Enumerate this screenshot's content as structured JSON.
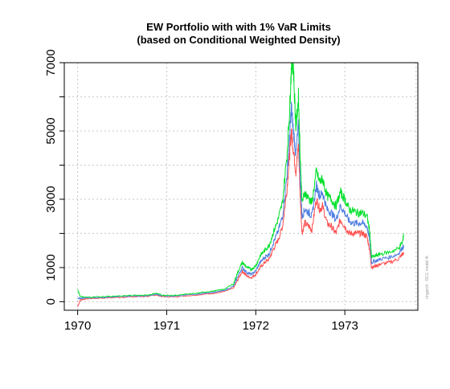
{
  "chart_data": {
    "type": "line",
    "title": "EW Portfolio with with 1% VaR Limits",
    "subtitle": "(based on Conditional Weighted Density)",
    "xlabel": "",
    "ylabel": "",
    "x_tick_labels": [
      "1970",
      "1971",
      "1972",
      "1973"
    ],
    "y_tick_labels": [
      "0",
      "1000",
      "3000",
      "5000",
      "7000"
    ],
    "y_gridlines": [
      0,
      1000,
      2000,
      3000,
      4000,
      5000,
      6000,
      7000
    ],
    "xlim": [
      1969.85,
      1973.82
    ],
    "ylim": [
      -250,
      7000
    ],
    "grid": true,
    "legend": "none",
    "watermark": "rmgarch : DCC model fit",
    "x": [
      1970.0,
      1970.03,
      1970.08,
      1970.2,
      1970.4,
      1970.6,
      1970.8,
      1970.88,
      1970.95,
      1971.05,
      1971.2,
      1971.35,
      1971.45,
      1971.55,
      1971.65,
      1971.75,
      1971.8,
      1971.85,
      1971.9,
      1971.95,
      1972.0,
      1972.05,
      1972.1,
      1972.15,
      1972.2,
      1972.25,
      1972.3,
      1972.35,
      1972.38,
      1972.4,
      1972.42,
      1972.45,
      1972.48,
      1972.5,
      1972.52,
      1972.55,
      1972.6,
      1972.63,
      1972.68,
      1972.72,
      1972.75,
      1972.8,
      1972.85,
      1972.9,
      1972.95,
      1973.0,
      1973.05,
      1973.1,
      1973.15,
      1973.2,
      1973.25,
      1973.28,
      1973.3,
      1973.35,
      1973.4,
      1973.5,
      1973.6,
      1973.65,
      1973.66
    ],
    "series": [
      {
        "color": "#ff4d4d",
        "values": [
          -150,
          50,
          80,
          100,
          120,
          140,
          160,
          200,
          150,
          140,
          170,
          200,
          230,
          250,
          300,
          400,
          650,
          900,
          750,
          700,
          800,
          1000,
          1150,
          1250,
          1550,
          1800,
          2200,
          3300,
          4300,
          5000,
          4500,
          3800,
          4600,
          3000,
          2000,
          2300,
          2200,
          2100,
          3000,
          2700,
          2800,
          2300,
          2200,
          2000,
          2400,
          2200,
          2000,
          2000,
          2000,
          2000,
          1900,
          1500,
          1000,
          1050,
          1100,
          1150,
          1250,
          1400,
          1400
        ]
      },
      {
        "color": "#4f7ee0",
        "values": [
          100,
          100,
          110,
          120,
          140,
          160,
          180,
          220,
          170,
          160,
          190,
          220,
          260,
          280,
          330,
          450,
          750,
          1000,
          850,
          800,
          900,
          1150,
          1300,
          1400,
          1750,
          2050,
          2500,
          3700,
          4800,
          5700,
          5100,
          4300,
          5200,
          3500,
          2500,
          2700,
          2600,
          2500,
          3400,
          3100,
          3200,
          2700,
          2600,
          2400,
          2800,
          2600,
          2350,
          2300,
          2300,
          2300,
          2200,
          1800,
          1150,
          1200,
          1250,
          1300,
          1400,
          1600,
          1600
        ]
      },
      {
        "color": "#00e02a",
        "values": [
          350,
          150,
          130,
          140,
          160,
          180,
          200,
          250,
          190,
          180,
          210,
          250,
          290,
          320,
          370,
          520,
          880,
          1150,
          1000,
          950,
          1050,
          1350,
          1500,
          1650,
          2050,
          2400,
          2900,
          4300,
          5600,
          6900,
          7000,
          5100,
          6000,
          4200,
          2900,
          3200,
          3000,
          2900,
          3800,
          3500,
          3600,
          3100,
          3000,
          2800,
          3200,
          3000,
          2700,
          2650,
          2600,
          2600,
          2500,
          2050,
          1300,
          1350,
          1400,
          1450,
          1550,
          1750,
          2000
        ]
      }
    ]
  }
}
